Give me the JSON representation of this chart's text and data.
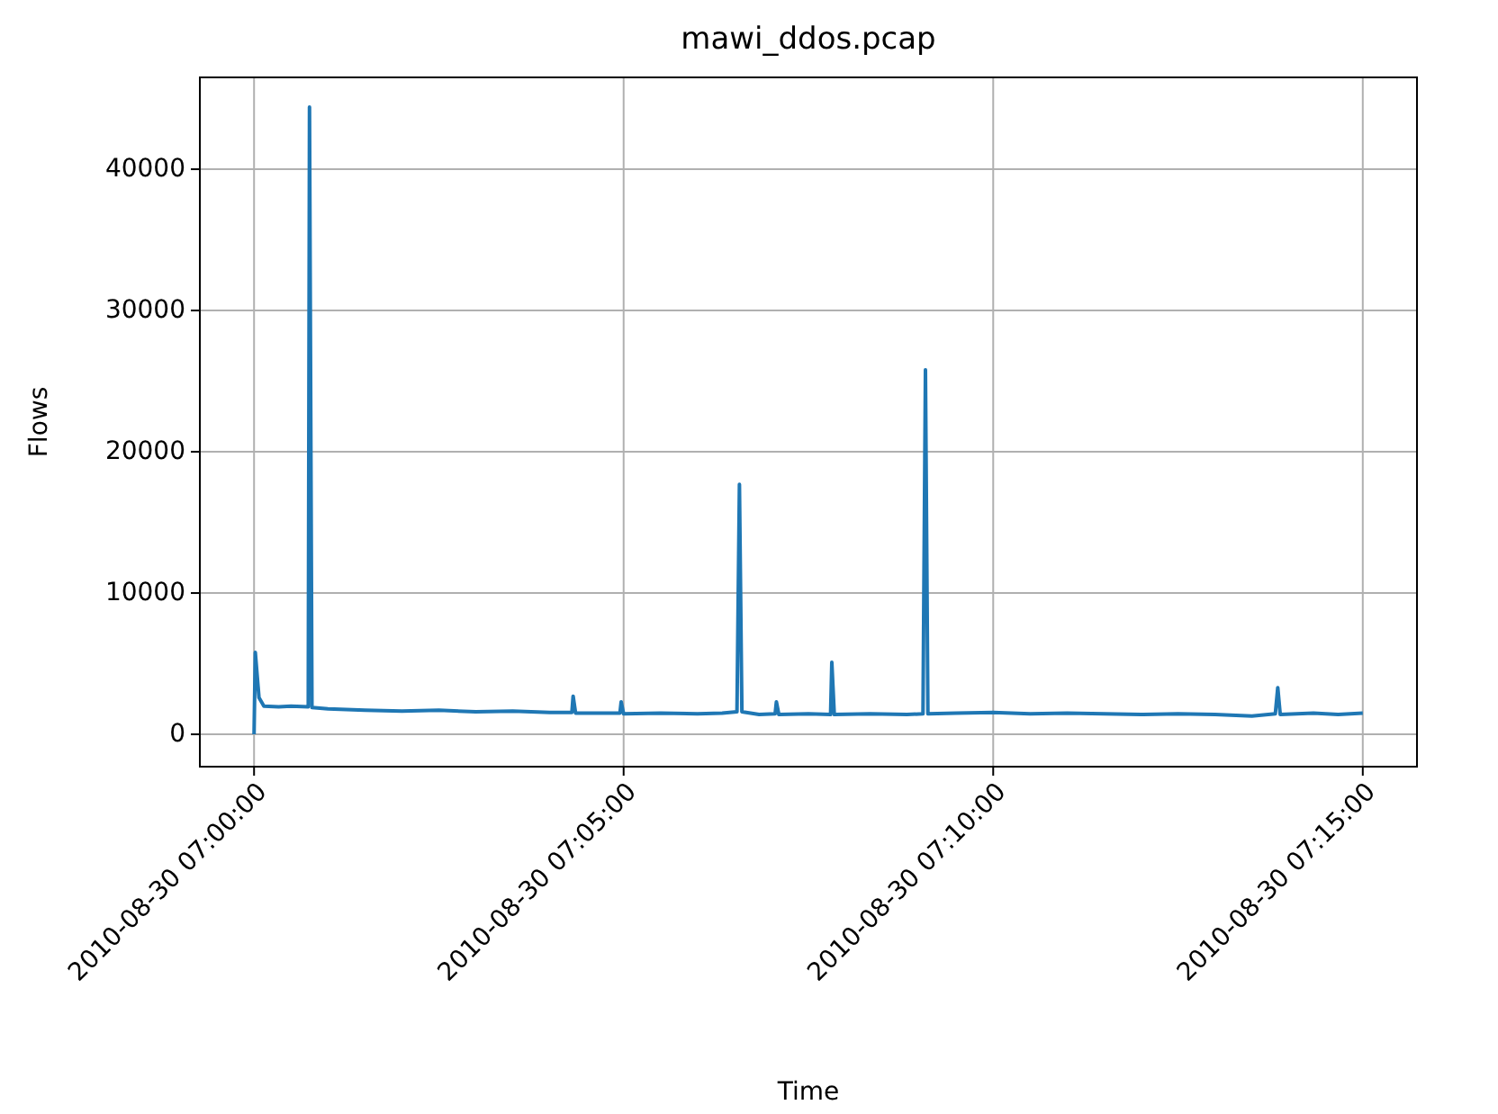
{
  "chart_data": {
    "type": "line",
    "title": "mawi_ddos.pcap",
    "xlabel": "Time",
    "ylabel": "Flows",
    "x": [
      "2010-08-30T07:00:00",
      "2010-08-30T07:00:01",
      "2010-08-30T07:00:04",
      "2010-08-30T07:00:08",
      "2010-08-30T07:00:20",
      "2010-08-30T07:00:30",
      "2010-08-30T07:00:44",
      "2010-08-30T07:00:45",
      "2010-08-30T07:00:47",
      "2010-08-30T07:01:00",
      "2010-08-30T07:01:30",
      "2010-08-30T07:02:00",
      "2010-08-30T07:02:30",
      "2010-08-30T07:03:00",
      "2010-08-30T07:03:30",
      "2010-08-30T07:04:00",
      "2010-08-30T07:04:18",
      "2010-08-30T07:04:19",
      "2010-08-30T07:04:21",
      "2010-08-30T07:04:40",
      "2010-08-30T07:04:57",
      "2010-08-30T07:04:58",
      "2010-08-30T07:05:00",
      "2010-08-30T07:05:30",
      "2010-08-30T07:06:00",
      "2010-08-30T07:06:20",
      "2010-08-30T07:06:32",
      "2010-08-30T07:06:34",
      "2010-08-30T07:06:36",
      "2010-08-30T07:06:50",
      "2010-08-30T07:07:03",
      "2010-08-30T07:07:04",
      "2010-08-30T07:07:06",
      "2010-08-30T07:07:30",
      "2010-08-30T07:07:48",
      "2010-08-30T07:07:49",
      "2010-08-30T07:07:51",
      "2010-08-30T07:08:20",
      "2010-08-30T07:08:50",
      "2010-08-30T07:09:03",
      "2010-08-30T07:09:05",
      "2010-08-30T07:09:07",
      "2010-08-30T07:09:30",
      "2010-08-30T07:10:00",
      "2010-08-30T07:10:30",
      "2010-08-30T07:11:00",
      "2010-08-30T07:11:30",
      "2010-08-30T07:12:00",
      "2010-08-30T07:12:30",
      "2010-08-30T07:13:00",
      "2010-08-30T07:13:30",
      "2010-08-30T07:13:49",
      "2010-08-30T07:13:51",
      "2010-08-30T07:13:53",
      "2010-08-30T07:14:20",
      "2010-08-30T07:14:40",
      "2010-08-30T07:15:00"
    ],
    "series": [
      {
        "color": "#1f77b4",
        "values": [
          0,
          5800,
          2600,
          2000,
          1950,
          2000,
          1950,
          44400,
          1900,
          1800,
          1700,
          1650,
          1700,
          1600,
          1650,
          1550,
          1550,
          2700,
          1500,
          1500,
          1500,
          2300,
          1450,
          1500,
          1450,
          1500,
          1600,
          17700,
          1600,
          1400,
          1450,
          2300,
          1400,
          1450,
          1400,
          5100,
          1400,
          1450,
          1400,
          1450,
          25800,
          1450,
          1500,
          1550,
          1450,
          1500,
          1450,
          1400,
          1450,
          1400,
          1300,
          1450,
          3300,
          1400,
          1500,
          1400,
          1500
        ]
      }
    ],
    "xlim": [
      "2010-08-30T06:59:16",
      "2010-08-30T07:15:44"
    ],
    "xticks": [
      {
        "value": "2010-08-30T07:00:00",
        "label": "2010-08-30 07:00:00"
      },
      {
        "value": "2010-08-30T07:05:00",
        "label": "2010-08-30 07:05:00"
      },
      {
        "value": "2010-08-30T07:10:00",
        "label": "2010-08-30 07:10:00"
      },
      {
        "value": "2010-08-30T07:15:00",
        "label": "2010-08-30 07:15:00"
      }
    ],
    "ylim": [
      -2290,
      46500
    ],
    "yticks": [
      0,
      10000,
      20000,
      30000,
      40000
    ],
    "grid": true,
    "line_style": "solid"
  }
}
